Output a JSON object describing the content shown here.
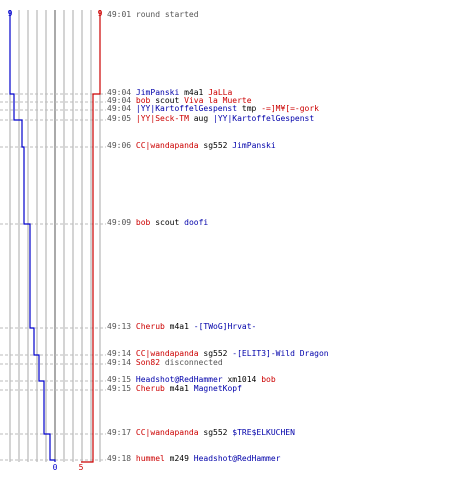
{
  "colors": {
    "red": "#cc0000",
    "blue": "#0000cc",
    "grid": "#aaaaaa",
    "time": "#555555"
  },
  "scores": {
    "blue_start": "9",
    "red_start": "9",
    "blue_end": "0",
    "red_end": "5"
  },
  "chart_data": {
    "type": "line",
    "series": [
      {
        "color": "blue",
        "values": [
          9,
          9,
          8,
          8,
          7,
          6,
          5,
          4,
          3,
          2,
          1,
          0
        ]
      },
      {
        "color": "red",
        "values": [
          9,
          9,
          9,
          9,
          9,
          9,
          9,
          9,
          9,
          9,
          9,
          5
        ]
      }
    ]
  },
  "events": [
    {
      "time": "49:01",
      "note": "round started"
    },
    {
      "time": "49:04",
      "actor": "JimPanski",
      "actor_team": "blue",
      "verb": "m4a1",
      "target": "JaLLa",
      "target_team": "red"
    },
    {
      "time": "49:04",
      "actor": "bob",
      "actor_team": "red",
      "verb": "scout",
      "target": "Viva la Muerte",
      "target_team": "red"
    },
    {
      "time": "49:04",
      "actor": "|YY|KartoffelGespenst",
      "actor_team": "blue",
      "verb": "tmp",
      "target": "-=]M¥[=-gork",
      "target_team": "red"
    },
    {
      "time": "49:05",
      "actor": "|YY|Seck-TM",
      "actor_team": "red",
      "verb": "aug",
      "target": "|YY|KartoffelGespenst",
      "target_team": "blue"
    },
    {
      "time": "49:06",
      "actor": "CC|wandapanda",
      "actor_team": "red",
      "verb": "sg552",
      "target": "JimPanski",
      "target_team": "blue"
    },
    {
      "time": "49:09",
      "actor": "bob",
      "actor_team": "red",
      "verb": "scout",
      "target": "doofi",
      "target_team": "blue"
    },
    {
      "time": "49:13",
      "actor": "Cherub",
      "actor_team": "red",
      "verb": "m4a1",
      "target": "-[TWoG]Hrvat-",
      "target_team": "blue"
    },
    {
      "time": "49:14",
      "actor": "CC|wandapanda",
      "actor_team": "red",
      "verb": "sg552",
      "target": "-[ELIT3]-Wild Dragon",
      "target_team": "blue"
    },
    {
      "time": "49:14",
      "actor": "Son82",
      "actor_team": "red",
      "note": "disconnected"
    },
    {
      "time": "49:15",
      "actor": "Headshot@RedHammer",
      "actor_team": "blue",
      "verb": "xm1014",
      "target": "bob",
      "target_team": "red"
    },
    {
      "time": "49:15",
      "actor": "Cherub",
      "actor_team": "red",
      "verb": "m4a1",
      "target": "MagnetKopf",
      "target_team": "blue"
    },
    {
      "time": "49:17",
      "actor": "CC|wandapanda",
      "actor_team": "red",
      "verb": "sg552",
      "target": "$TRE$ELKUCHEN",
      "target_team": "blue"
    },
    {
      "time": "49:18",
      "actor": "hummel",
      "actor_team": "red",
      "verb": "m249",
      "target": "Headshot@RedHammer",
      "target_team": "blue"
    }
  ]
}
